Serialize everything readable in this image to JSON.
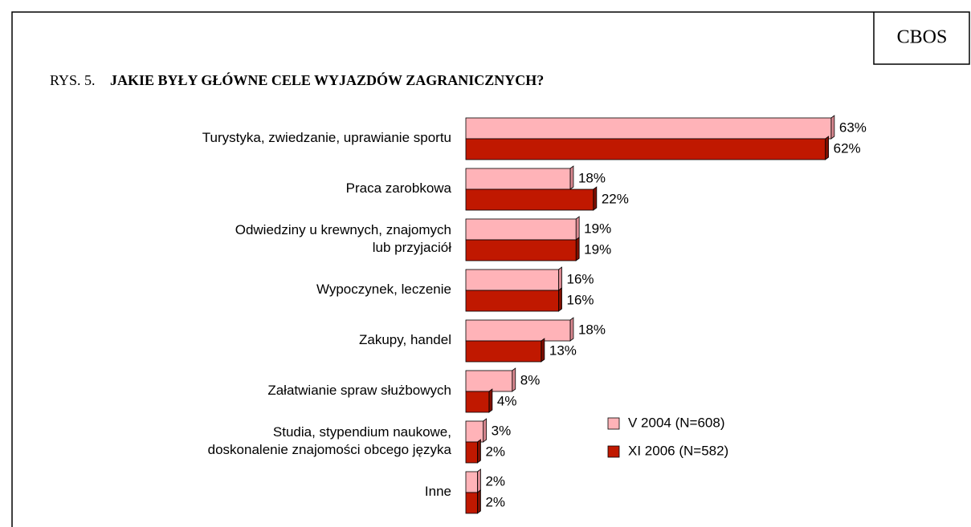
{
  "header": {
    "logo": "CBOS"
  },
  "chart_data": {
    "type": "hbar",
    "label": "RYS. 5.",
    "title": "JAKIE BYŁY GŁÓWNE CELE WYJAZDÓW ZAGRANICZNYCH?",
    "categories": [
      "Turystyka, zwiedzanie, uprawianie sportu",
      "Praca zarobkowa",
      "Odwiedziny u krewnych, znajomych\nlub przyjaciół",
      "Wypoczynek, leczenie",
      "Zakupy, handel",
      "Załatwianie spraw służbowych",
      "Studia, stypendium naukowe,\ndoskonalenie znajomości obcego języka",
      "Inne"
    ],
    "xlim": [
      0,
      100
    ],
    "legend": "lower-right",
    "series": [
      {
        "name": "V 2004 (N=608)",
        "color": "#ffb3b8",
        "values": [
          63,
          18,
          19,
          16,
          18,
          8,
          3,
          2
        ],
        "value_labels": [
          "63%",
          "18%",
          "19%",
          "16%",
          "18%",
          "8%",
          "3%",
          "2%"
        ]
      },
      {
        "name": "XI 2006 (N=582)",
        "color": "#c01800",
        "values": [
          62,
          22,
          19,
          16,
          13,
          4,
          2,
          2
        ],
        "value_labels": [
          "62%",
          "22%",
          "19%",
          "16%",
          "13%",
          "4%",
          "2%",
          "2%"
        ]
      }
    ]
  }
}
